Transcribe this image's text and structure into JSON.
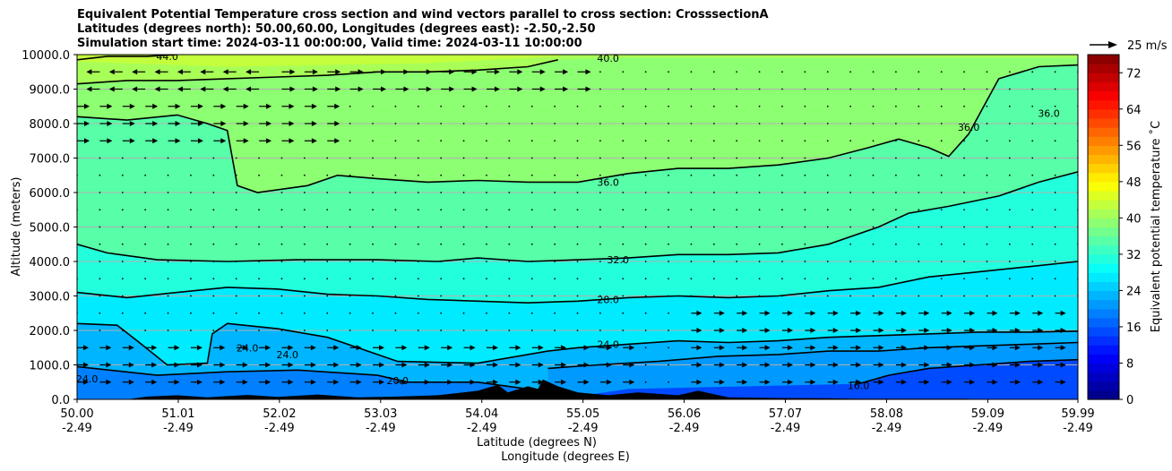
{
  "chart_data": {
    "type": "heatmap",
    "title": [
      "Equivalent Potential Temperature cross section and wind vectors parallel to cross section: CrosssectionA",
      "Latitudes (degrees north): 50.00,60.00, Longitudes (degrees east): -2.50,-2.50",
      "Simulation start time: 2024-03-11 00:00:00, Valid time: 2024-03-11 10:00:00"
    ],
    "xlabel": "Latitude (degrees N)",
    "xlabel2": "Longitude (degrees E)",
    "ylabel": "Altitude (meters)",
    "x_ticks": [
      {
        "lat": "50.00",
        "lon": "-2.49"
      },
      {
        "lat": "51.01",
        "lon": "-2.49"
      },
      {
        "lat": "52.02",
        "lon": "-2.49"
      },
      {
        "lat": "53.03",
        "lon": "-2.49"
      },
      {
        "lat": "54.04",
        "lon": "-2.49"
      },
      {
        "lat": "55.05",
        "lon": "-2.49"
      },
      {
        "lat": "56.06",
        "lon": "-2.49"
      },
      {
        "lat": "57.07",
        "lon": "-2.49"
      },
      {
        "lat": "58.08",
        "lon": "-2.49"
      },
      {
        "lat": "59.09",
        "lon": "-2.49"
      },
      {
        "lat": "59.99",
        "lon": "-2.49"
      }
    ],
    "xlim": [
      50.0,
      59.99
    ],
    "y_ticks": [
      "0.0",
      "1000.0",
      "2000.0",
      "3000.0",
      "4000.0",
      "5000.0",
      "6000.0",
      "7000.0",
      "8000.0",
      "9000.0",
      "10000.0"
    ],
    "ylim": [
      0,
      10000
    ],
    "grid": "horizontal",
    "colorbar": {
      "label": "Equivalent potential temperature ˚C",
      "ticks": [
        "0",
        "8",
        "16",
        "24",
        "32",
        "40",
        "48",
        "56",
        "64",
        "72"
      ],
      "range": [
        0,
        76
      ]
    },
    "quiver_key": "25 m/s",
    "contours": [
      {
        "level": "20.0",
        "lat": [
          50.0,
          50.8,
          51.5,
          52.2,
          53.0,
          53.3,
          54.0,
          54.5,
          54.65,
          54.8,
          55.5,
          56.5,
          57.5,
          58.0,
          58.4,
          58.9
        ],
        "z": [
          950,
          700,
          800,
          850,
          700,
          500,
          500,
          300,
          200,
          0,
          0,
          0,
          0,
          0,
          0,
          0
        ]
      },
      {
        "level": "24.0",
        "lat": [
          50.0,
          50.4,
          50.6,
          50.9,
          51.3,
          51.35,
          51.5,
          52.0,
          52.5,
          53.2,
          54.0,
          54.7,
          55.0,
          55.5,
          56.0,
          56.5,
          57.0,
          57.5,
          58.0,
          58.5,
          59.0,
          59.5,
          59.99
        ],
        "z": [
          2200,
          2150,
          1700,
          1000,
          1050,
          1900,
          2200,
          2050,
          1800,
          1100,
          1050,
          1400,
          1500,
          1600,
          1700,
          1650,
          1700,
          1800,
          1850,
          1900,
          1950,
          1950,
          1980
        ]
      },
      {
        "level": "24.0",
        "lat": [
          54.7,
          55.2,
          55.8,
          56.4,
          57.0,
          57.5,
          58.0,
          58.5,
          59.0,
          59.5,
          59.99
        ],
        "z": [
          900,
          1000,
          1100,
          1250,
          1300,
          1400,
          1400,
          1500,
          1550,
          1600,
          1650
        ]
      },
      {
        "level": "16.0",
        "lat": [
          57.8,
          58.1,
          58.5,
          59.0,
          59.5,
          59.99
        ],
        "z": [
          450,
          700,
          900,
          1000,
          1100,
          1150
        ]
      },
      {
        "level": "28.0",
        "lat": [
          50.0,
          50.5,
          51.0,
          51.5,
          52.0,
          52.5,
          53.0,
          53.5,
          54.0,
          54.5,
          55.0,
          55.5,
          56.0,
          56.5,
          57.0,
          57.5,
          58.0,
          58.5,
          59.0,
          59.5,
          59.99
        ],
        "z": [
          3100,
          2950,
          3100,
          3250,
          3200,
          3050,
          3000,
          2900,
          2850,
          2800,
          2850,
          2950,
          3000,
          2950,
          3000,
          3150,
          3250,
          3550,
          3700,
          3850,
          4000
        ]
      },
      {
        "level": "32.0",
        "lat": [
          50.0,
          50.3,
          50.8,
          51.5,
          52.2,
          53.0,
          53.6,
          54.0,
          54.5,
          55.0,
          55.5,
          56.0,
          56.5,
          57.0,
          57.5,
          58.0,
          58.3,
          58.7,
          59.2,
          59.6,
          59.99
        ],
        "z": [
          4500,
          4250,
          4050,
          4000,
          4050,
          4050,
          4000,
          4100,
          4000,
          4050,
          4100,
          4200,
          4200,
          4250,
          4500,
          5000,
          5400,
          5600,
          5900,
          6300,
          6600
        ]
      },
      {
        "level": "36.0",
        "lat": [
          50.0,
          50.5,
          51.0,
          51.3,
          51.5,
          51.6,
          51.8,
          52.3,
          52.6,
          53.0,
          53.5,
          54.0,
          54.5,
          55.0,
          55.5,
          56.0,
          56.5,
          57.0,
          57.5,
          57.9,
          58.2,
          58.5,
          58.7,
          58.9,
          59.2,
          59.6,
          59.99
        ],
        "z": [
          8200,
          8100,
          8250,
          8000,
          7800,
          6200,
          6000,
          6200,
          6500,
          6400,
          6300,
          6350,
          6300,
          6300,
          6550,
          6700,
          6700,
          6800,
          7000,
          7300,
          7550,
          7300,
          7050,
          7700,
          9300,
          9650,
          9700
        ]
      },
      {
        "level": "40.0",
        "lat": [
          50.0,
          50.5,
          51.0,
          51.5,
          52.0,
          52.5,
          53.0,
          53.5,
          54.0,
          54.5,
          54.8
        ],
        "z": [
          9150,
          9250,
          9250,
          9300,
          9350,
          9400,
          9500,
          9500,
          9550,
          9650,
          9850
        ]
      },
      {
        "level": "44.0",
        "lat": [
          50.0,
          50.3,
          50.7,
          51.0
        ],
        "z": [
          9850,
          9950,
          9950,
          10000
        ]
      }
    ],
    "contour_labels": [
      {
        "text": "40.0",
        "lat": 55.3,
        "z": 9900
      },
      {
        "text": "44.0",
        "lat": 50.9,
        "z": 9950
      },
      {
        "text": "36.0",
        "lat": 55.3,
        "z": 6300
      },
      {
        "text": "36.0",
        "lat": 58.9,
        "z": 7900
      },
      {
        "text": "36.0",
        "lat": 59.7,
        "z": 8300
      },
      {
        "text": "32.0",
        "lat": 55.4,
        "z": 4050
      },
      {
        "text": "28.0",
        "lat": 55.3,
        "z": 2900
      },
      {
        "text": "24.0",
        "lat": 55.3,
        "z": 1600
      },
      {
        "text": "24.0",
        "lat": 51.7,
        "z": 1500
      },
      {
        "text": "24.0",
        "lat": 52.1,
        "z": 1300
      },
      {
        "text": "24.0",
        "lat": 50.1,
        "z": 600
      },
      {
        "text": "20.0",
        "lat": 53.2,
        "z": 550
      },
      {
        "text": "16.0",
        "lat": 57.8,
        "z": 400
      }
    ]
  }
}
